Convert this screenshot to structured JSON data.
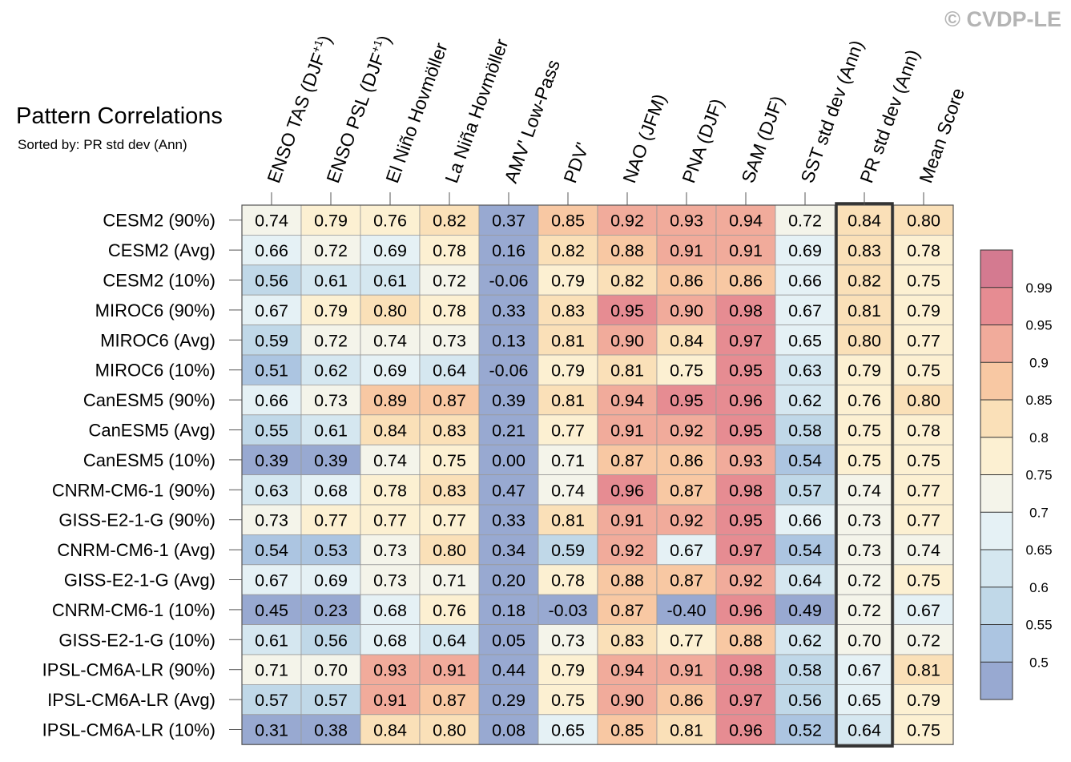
{
  "watermark": "© CVDP-LE",
  "chart_data": {
    "type": "heatmap",
    "title": "Pattern Correlations",
    "subtitle": "Sorted by: PR std dev (Ann)",
    "columns": [
      "ENSO TAS (DJF+1)",
      "ENSO PSL (DJF+1)",
      "El Niño Hovmöller",
      "La Niña Hovmöller",
      "AMV' Low-Pass",
      "PDV'",
      "NAO (JFM)",
      "PNA (DJF)",
      "SAM (DJF)",
      "SST std dev (Ann)",
      "PR std dev (Ann)",
      "Mean Score"
    ],
    "column_labels": [
      {
        "text": "ENSO TAS (DJF",
        "sup": "+1",
        "tail": ")"
      },
      {
        "text": "ENSO PSL (DJF",
        "sup": "+1",
        "tail": ")"
      },
      {
        "text": "El Niño Hovmöller",
        "sup": "",
        "tail": ""
      },
      {
        "text": "La Niña Hovmöller",
        "sup": "",
        "tail": ""
      },
      {
        "text": "AMV' Low-Pass",
        "sup": "",
        "tail": ""
      },
      {
        "text": "PDV'",
        "sup": "",
        "tail": ""
      },
      {
        "text": "NAO (JFM)",
        "sup": "",
        "tail": ""
      },
      {
        "text": "PNA (DJF)",
        "sup": "",
        "tail": ""
      },
      {
        "text": "SAM (DJF)",
        "sup": "",
        "tail": ""
      },
      {
        "text": "SST std dev (Ann)",
        "sup": "",
        "tail": ""
      },
      {
        "text": "PR std dev (Ann)",
        "sup": "",
        "tail": ""
      },
      {
        "text": "Mean Score",
        "sup": "",
        "tail": ""
      }
    ],
    "highlighted_column": "PR std dev (Ann)",
    "rows": [
      "CESM2 (90%)",
      "CESM2 (Avg)",
      "CESM2 (10%)",
      "MIROC6 (90%)",
      "MIROC6 (Avg)",
      "MIROC6 (10%)",
      "CanESM5 (90%)",
      "CanESM5 (Avg)",
      "CanESM5 (10%)",
      "CNRM-CM6-1 (90%)",
      "GISS-E2-1-G (90%)",
      "CNRM-CM6-1 (Avg)",
      "GISS-E2-1-G (Avg)",
      "CNRM-CM6-1 (10%)",
      "GISS-E2-1-G (10%)",
      "IPSL-CM6A-LR (90%)",
      "IPSL-CM6A-LR (Avg)",
      "IPSL-CM6A-LR (10%)"
    ],
    "values": [
      [
        "0.74",
        "0.79",
        "0.76",
        "0.82",
        "0.37",
        "0.85",
        "0.92",
        "0.93",
        "0.94",
        "0.72",
        "0.84",
        "0.80"
      ],
      [
        "0.66",
        "0.72",
        "0.69",
        "0.78",
        "0.16",
        "0.82",
        "0.88",
        "0.91",
        "0.91",
        "0.69",
        "0.83",
        "0.78"
      ],
      [
        "0.56",
        "0.61",
        "0.61",
        "0.72",
        "-0.06",
        "0.79",
        "0.82",
        "0.86",
        "0.86",
        "0.66",
        "0.82",
        "0.75"
      ],
      [
        "0.67",
        "0.79",
        "0.80",
        "0.78",
        "0.33",
        "0.83",
        "0.95",
        "0.90",
        "0.98",
        "0.67",
        "0.81",
        "0.79"
      ],
      [
        "0.59",
        "0.72",
        "0.74",
        "0.73",
        "0.13",
        "0.81",
        "0.90",
        "0.84",
        "0.97",
        "0.65",
        "0.80",
        "0.77"
      ],
      [
        "0.51",
        "0.62",
        "0.69",
        "0.64",
        "-0.06",
        "0.79",
        "0.81",
        "0.75",
        "0.95",
        "0.63",
        "0.79",
        "0.75"
      ],
      [
        "0.66",
        "0.73",
        "0.89",
        "0.87",
        "0.39",
        "0.81",
        "0.94",
        "0.95",
        "0.96",
        "0.62",
        "0.76",
        "0.80"
      ],
      [
        "0.55",
        "0.61",
        "0.84",
        "0.83",
        "0.21",
        "0.77",
        "0.91",
        "0.92",
        "0.95",
        "0.58",
        "0.75",
        "0.78"
      ],
      [
        "0.39",
        "0.39",
        "0.74",
        "0.75",
        "0.00",
        "0.71",
        "0.87",
        "0.86",
        "0.93",
        "0.54",
        "0.75",
        "0.75"
      ],
      [
        "0.63",
        "0.68",
        "0.78",
        "0.83",
        "0.47",
        "0.74",
        "0.96",
        "0.87",
        "0.98",
        "0.57",
        "0.74",
        "0.77"
      ],
      [
        "0.73",
        "0.77",
        "0.77",
        "0.77",
        "0.33",
        "0.81",
        "0.91",
        "0.92",
        "0.95",
        "0.66",
        "0.73",
        "0.77"
      ],
      [
        "0.54",
        "0.53",
        "0.73",
        "0.80",
        "0.34",
        "0.59",
        "0.92",
        "0.67",
        "0.97",
        "0.54",
        "0.73",
        "0.74"
      ],
      [
        "0.67",
        "0.69",
        "0.73",
        "0.71",
        "0.20",
        "0.78",
        "0.88",
        "0.87",
        "0.92",
        "0.64",
        "0.72",
        "0.75"
      ],
      [
        "0.45",
        "0.23",
        "0.68",
        "0.76",
        "0.18",
        "-0.03",
        "0.87",
        "-0.40",
        "0.96",
        "0.49",
        "0.72",
        "0.67"
      ],
      [
        "0.61",
        "0.56",
        "0.68",
        "0.64",
        "0.05",
        "0.73",
        "0.83",
        "0.77",
        "0.88",
        "0.62",
        "0.70",
        "0.72"
      ],
      [
        "0.71",
        "0.70",
        "0.93",
        "0.91",
        "0.44",
        "0.79",
        "0.94",
        "0.91",
        "0.98",
        "0.58",
        "0.67",
        "0.81"
      ],
      [
        "0.57",
        "0.57",
        "0.91",
        "0.87",
        "0.29",
        "0.75",
        "0.90",
        "0.86",
        "0.97",
        "0.56",
        "0.65",
        "0.79"
      ],
      [
        "0.31",
        "0.38",
        "0.84",
        "0.80",
        "0.08",
        "0.65",
        "0.85",
        "0.81",
        "0.96",
        "0.52",
        "0.64",
        "0.75"
      ]
    ],
    "colorbar": {
      "levels": [
        "0.5",
        "0.55",
        "0.6",
        "0.65",
        "0.7",
        "0.75",
        "0.8",
        "0.85",
        "0.9",
        "0.95",
        "0.99"
      ],
      "colors": [
        "#98a9d1",
        "#acc5e1",
        "#c0d8e8",
        "#d5e7f0",
        "#e5f1f5",
        "#f4f4ea",
        "#fcf0d2",
        "#fae0b8",
        "#f8c8a3",
        "#f1ab9b",
        "#e68c92",
        "#d47a90"
      ]
    }
  }
}
